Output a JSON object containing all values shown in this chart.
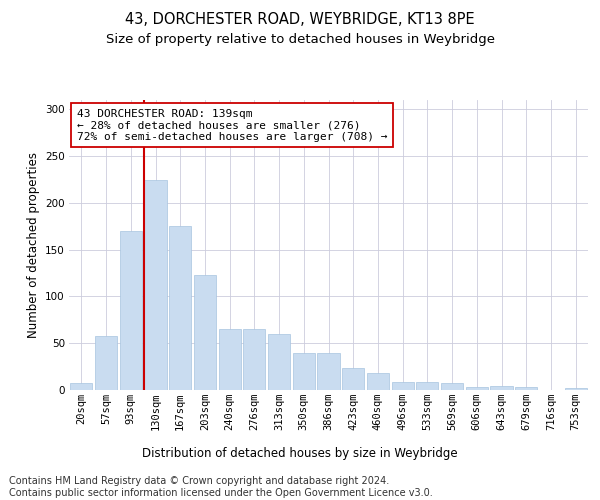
{
  "title1": "43, DORCHESTER ROAD, WEYBRIDGE, KT13 8PE",
  "title2": "Size of property relative to detached houses in Weybridge",
  "xlabel": "Distribution of detached houses by size in Weybridge",
  "ylabel": "Number of detached properties",
  "categories": [
    "20sqm",
    "57sqm",
    "93sqm",
    "130sqm",
    "167sqm",
    "203sqm",
    "240sqm",
    "276sqm",
    "313sqm",
    "350sqm",
    "386sqm",
    "423sqm",
    "460sqm",
    "496sqm",
    "533sqm",
    "569sqm",
    "606sqm",
    "643sqm",
    "679sqm",
    "716sqm",
    "753sqm"
  ],
  "values": [
    7,
    58,
    170,
    225,
    175,
    123,
    65,
    65,
    60,
    40,
    40,
    23,
    18,
    9,
    9,
    7,
    3,
    4,
    3,
    0,
    2
  ],
  "bar_color": "#c9dcf0",
  "bar_edgecolor": "#a8c4e0",
  "vline_x_index": 3,
  "vline_color": "#cc0000",
  "annotation_text": "43 DORCHESTER ROAD: 139sqm\n← 28% of detached houses are smaller (276)\n72% of semi-detached houses are larger (708) →",
  "annotation_box_edgecolor": "#cc0000",
  "annotation_box_facecolor": "#ffffff",
  "ylim": [
    0,
    310
  ],
  "yticks": [
    0,
    50,
    100,
    150,
    200,
    250,
    300
  ],
  "footer1": "Contains HM Land Registry data © Crown copyright and database right 2024.",
  "footer2": "Contains public sector information licensed under the Open Government Licence v3.0.",
  "title1_fontsize": 10.5,
  "title2_fontsize": 9.5,
  "axis_label_fontsize": 8.5,
  "tick_fontsize": 7.5,
  "annotation_fontsize": 8,
  "footer_fontsize": 7,
  "background_color": "#ffffff",
  "fig_background_color": "#ffffff",
  "grid_color": "#ccccdd",
  "ylabel_fontsize": 8.5
}
